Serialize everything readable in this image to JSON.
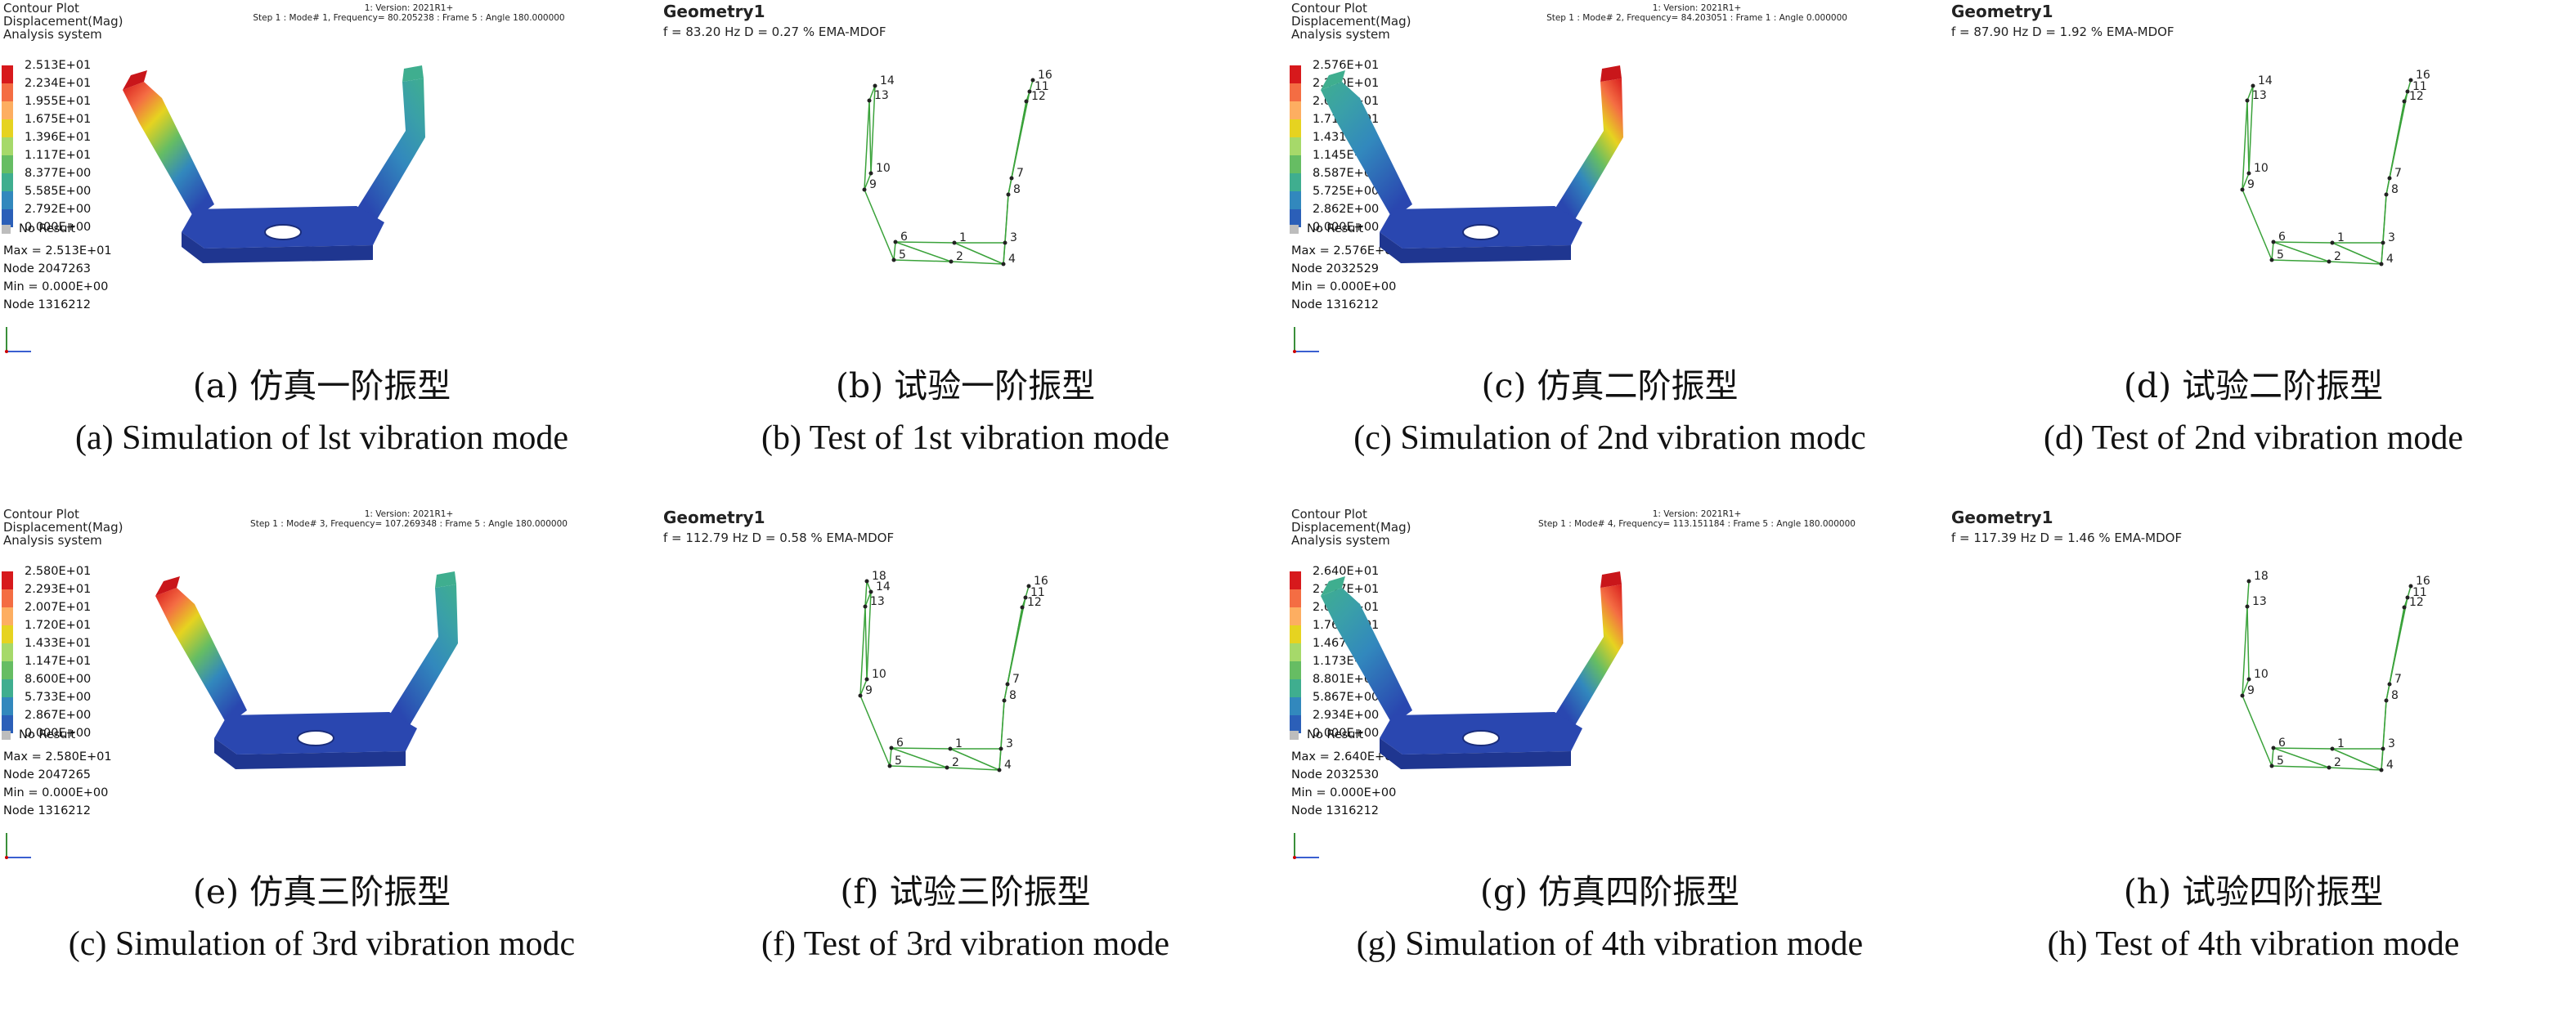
{
  "panels": [
    {
      "kind": "sim",
      "caption_cn": "(a) 仿真一阶振型",
      "caption_en": "(a) Simulation of lst vibration mode",
      "header": [
        "Contour Plot",
        "Displacement(Mag)",
        "Analysis system"
      ],
      "version": "1: Version: 2021R1+",
      "step": "Step 1 : Mode# 1, Frequency= 80.205238 : Frame 5 : Angle 180.000000",
      "legend": [
        "2.513E+01",
        "2.234E+01",
        "1.955E+01",
        "1.675E+01",
        "1.396E+01",
        "1.117E+01",
        "8.377E+00",
        "5.585E+00",
        "2.792E+00",
        "0.000E+00"
      ],
      "no_result": "No Result",
      "stats": [
        "Max = 2.513E+01",
        "Node 2047263",
        "Min = 0.000E+00",
        "Node 1316212"
      ],
      "hot_side": "left"
    },
    {
      "kind": "test",
      "caption_cn": "(b) 试验一阶振型",
      "caption_en": "(b) Test of 1st vibration mode",
      "geometry": "Geometry1",
      "freq_line": "f = 83.20 Hz   D = 0.27 %   EMA-MDOF",
      "nodes": [
        "14",
        "13",
        "10",
        "9",
        "6",
        "1",
        "3",
        "5",
        "2",
        "4",
        "8",
        "7",
        "12",
        "11",
        "16"
      ]
    },
    {
      "kind": "sim",
      "caption_cn": "(c) 仿真二阶振型",
      "caption_en": "(c) Simulation of 2nd vibration modc",
      "header": [
        "Contour Plot",
        "Displacement(Mag)",
        "Analysis system"
      ],
      "version": "1: Version: 2021R1+",
      "step": "Step 1 : Mode# 2, Frequency= 84.203051 : Frame 1 : Angle 0.000000",
      "legend": [
        "2.576E+01",
        "2.290E+01",
        "2.004E+01",
        "1.717E+01",
        "1.431E+01",
        "1.145E+01",
        "8.587E+00",
        "5.725E+00",
        "2.862E+00",
        "0.000E+00"
      ],
      "no_result": "No Result",
      "stats": [
        "Max = 2.576E+01",
        "Node 2032529",
        "Min = 0.000E+00",
        "Node 1316212"
      ],
      "hot_side": "right"
    },
    {
      "kind": "test",
      "caption_cn": "(d) 试验二阶振型",
      "caption_en": "(d) Test of 2nd vibration mode",
      "geometry": "Geometry1",
      "freq_line": "f = 87.90 Hz   D = 1.92 %   EMA-MDOF",
      "nodes": [
        "14",
        "13",
        "10",
        "9",
        "6",
        "1",
        "3",
        "5",
        "2",
        "4",
        "8",
        "7",
        "12",
        "11",
        "16"
      ]
    },
    {
      "kind": "sim",
      "caption_cn": "(e) 仿真三阶振型",
      "caption_en": "(c) Simulation of 3rd vibration modc",
      "header": [
        "Contour Plot",
        "Displacement(Mag)",
        "Analysis system"
      ],
      "version": "1: Version: 2021R1+",
      "step": "Step 1 : Mode# 3, Frequency= 107.269348 : Frame 5 : Angle 180.000000",
      "legend": [
        "2.580E+01",
        "2.293E+01",
        "2.007E+01",
        "1.720E+01",
        "1.433E+01",
        "1.147E+01",
        "8.600E+00",
        "5.733E+00",
        "2.867E+00",
        "0.000E+00"
      ],
      "no_result": "No Result",
      "stats": [
        "Max = 2.580E+01",
        "Node 2047265",
        "Min = 0.000E+00",
        "Node 1316212"
      ],
      "hot_side": "left"
    },
    {
      "kind": "test",
      "caption_cn": "(f) 试验三阶振型",
      "caption_en": "(f) Test of 3rd vibration mode",
      "geometry": "Geometry1",
      "freq_line": "f = 112.79 Hz   D = 0.58 %   EMA-MDOF",
      "nodes": [
        "18",
        "14",
        "13",
        "10",
        "9",
        "6",
        "1",
        "3",
        "5",
        "2",
        "4",
        "8",
        "7",
        "12",
        "11",
        "16"
      ]
    },
    {
      "kind": "sim",
      "caption_cn": "(g) 仿真四阶振型",
      "caption_en": "(g) Simulation of 4th vibration mode",
      "header": [
        "Contour Plot",
        "Displacement(Mag)",
        "Analysis system"
      ],
      "version": "1: Version: 2021R1+",
      "step": "Step 1 : Mode# 4, Frequency= 113.151184 : Frame 5 : Angle 180.000000",
      "legend": [
        "2.640E+01",
        "2.347E+01",
        "2.054E+01",
        "1.760E+01",
        "1.467E+01",
        "1.173E+01",
        "8.801E+00",
        "5.867E+00",
        "2.934E+00",
        "0.000E+00"
      ],
      "no_result": "No Result",
      "stats": [
        "Max = 2.640E+01",
        "Node 2032530",
        "Min = 0.000E+00",
        "Node 1316212"
      ],
      "hot_side": "right"
    },
    {
      "kind": "test",
      "caption_cn": "(h) 试验四阶振型",
      "caption_en": "(h) Test of 4th vibration mode",
      "geometry": "Geometry1",
      "freq_line": "f = 117.39 Hz   D = 1.46 %   EMA-MDOF",
      "nodes": [
        "18",
        "13",
        "10",
        "9",
        "6",
        "1",
        "3",
        "5",
        "2",
        "4",
        "8",
        "7",
        "12",
        "11",
        "16"
      ]
    }
  ],
  "colors": {
    "legend": [
      "#d7191c",
      "#f46d43",
      "#fdae61",
      "#e6d320",
      "#a6d96a",
      "#66bd63",
      "#3fae8f",
      "#3288bd",
      "#2b5fb8",
      "#1f3c9e"
    ],
    "body_blue": "#2a47b0",
    "mesh_green": "#3aa23a"
  }
}
